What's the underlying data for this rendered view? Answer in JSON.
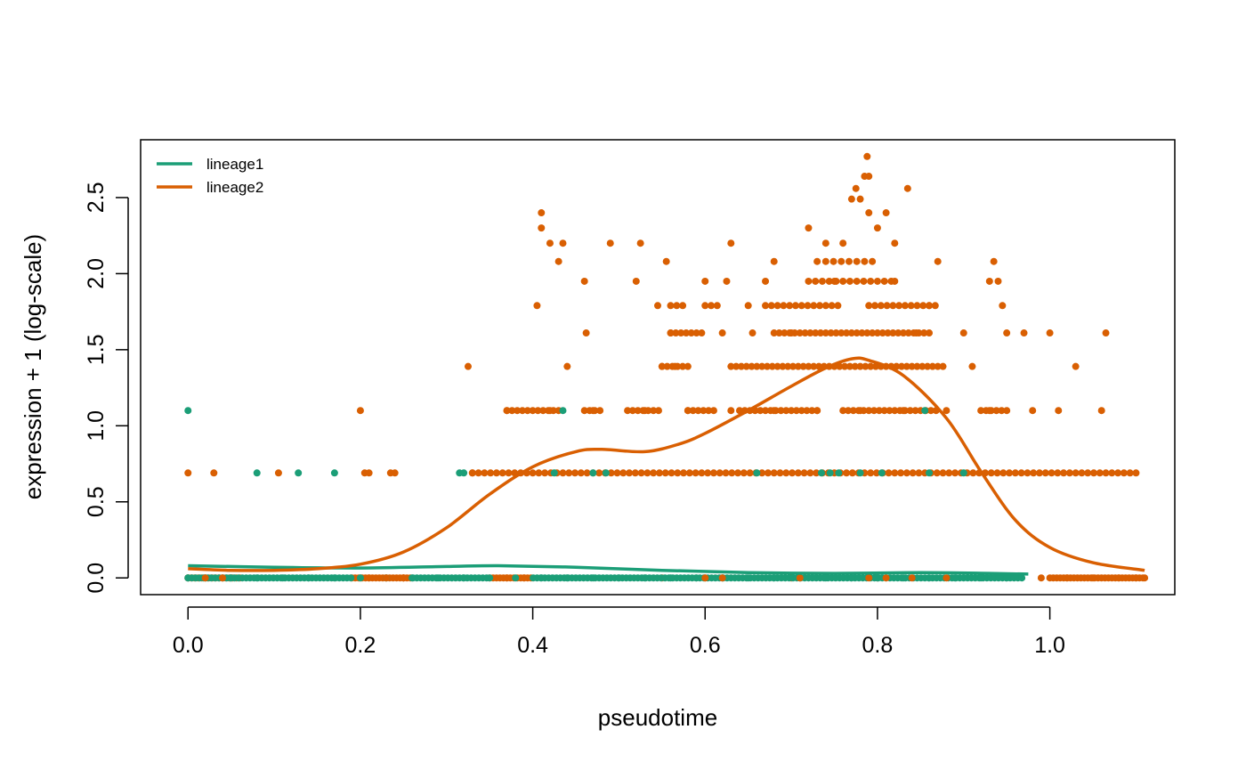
{
  "chart_data": {
    "type": "scatter",
    "title": "",
    "xlabel": "pseudotime",
    "ylabel": "expression + 1 (log-scale)",
    "xlim": [
      -0.055,
      1.145
    ],
    "ylim": [
      -0.11,
      2.88
    ],
    "xticks": [
      0.0,
      0.2,
      0.4,
      0.6,
      0.8,
      1.0
    ],
    "xtick_labels": [
      "0.0",
      "0.2",
      "0.4",
      "0.6",
      "0.8",
      "1.0"
    ],
    "yticks": [
      0.0,
      0.5,
      1.0,
      1.5,
      2.0,
      2.5
    ],
    "ytick_labels": [
      "0.0",
      "0.5",
      "1.0",
      "1.5",
      "2.0",
      "2.5"
    ],
    "grid": false,
    "legend_position": "top-left",
    "series": [
      {
        "name": "lineage1",
        "color": "#1B9E77",
        "points": [
          [
            0.0,
            1.1
          ],
          [
            0.08,
            0.69
          ],
          [
            0.128,
            0.69
          ],
          [
            0.17,
            0.69
          ],
          [
            0.315,
            0.69
          ],
          [
            0.32,
            0.69
          ],
          [
            0.435,
            1.1
          ],
          [
            0.425,
            0.69
          ],
          [
            0.47,
            0.69
          ],
          [
            0.485,
            0.69
          ],
          [
            0.66,
            0.69
          ],
          [
            0.735,
            0.69
          ],
          [
            0.745,
            0.69
          ],
          [
            0.755,
            0.69
          ],
          [
            0.78,
            0.69
          ],
          [
            0.805,
            0.69
          ],
          [
            0.855,
            1.1
          ],
          [
            0.86,
            0.69
          ],
          [
            0.9,
            0.69
          ],
          [
            0.0,
            0.0
          ],
          [
            0.02,
            0.0
          ],
          [
            0.05,
            0.0
          ],
          [
            0.08,
            0.0
          ],
          [
            0.11,
            0.0
          ],
          [
            0.14,
            0.0
          ],
          [
            0.17,
            0.0
          ],
          [
            0.2,
            0.0
          ],
          [
            0.23,
            0.0
          ],
          [
            0.26,
            0.0
          ],
          [
            0.29,
            0.0
          ],
          [
            0.32,
            0.0
          ],
          [
            0.35,
            0.0
          ],
          [
            0.38,
            0.0
          ],
          [
            0.41,
            0.0
          ],
          [
            0.44,
            0.0
          ],
          [
            0.47,
            0.0
          ],
          [
            0.5,
            0.0
          ],
          [
            0.53,
            0.0
          ],
          [
            0.56,
            0.0
          ],
          [
            0.59,
            0.0
          ],
          [
            0.62,
            0.0
          ],
          [
            0.65,
            0.0
          ],
          [
            0.68,
            0.0
          ],
          [
            0.71,
            0.0
          ],
          [
            0.74,
            0.0
          ],
          [
            0.77,
            0.0
          ],
          [
            0.8,
            0.0
          ],
          [
            0.83,
            0.0
          ],
          [
            0.86,
            0.0
          ],
          [
            0.89,
            0.0
          ],
          [
            0.92,
            0.0
          ],
          [
            0.95,
            0.0
          ]
        ],
        "curve": [
          [
            0.0,
            0.08
          ],
          [
            0.1,
            0.07
          ],
          [
            0.2,
            0.065
          ],
          [
            0.3,
            0.075
          ],
          [
            0.36,
            0.08
          ],
          [
            0.45,
            0.07
          ],
          [
            0.55,
            0.05
          ],
          [
            0.65,
            0.035
          ],
          [
            0.75,
            0.03
          ],
          [
            0.85,
            0.035
          ],
          [
            0.93,
            0.03
          ],
          [
            0.975,
            0.025
          ]
        ]
      },
      {
        "name": "lineage2",
        "color": "#D95F02",
        "points": [
          [
            0.0,
            0.69
          ],
          [
            0.03,
            0.69
          ],
          [
            0.105,
            0.69
          ],
          [
            0.2,
            1.1
          ],
          [
            0.205,
            0.69
          ],
          [
            0.21,
            0.69
          ],
          [
            0.235,
            0.69
          ],
          [
            0.24,
            0.69
          ],
          [
            0.325,
            1.39
          ],
          [
            0.33,
            0.69
          ],
          [
            0.405,
            1.79
          ],
          [
            0.41,
            2.4
          ],
          [
            0.41,
            2.3
          ],
          [
            0.42,
            2.2
          ],
          [
            0.43,
            2.08
          ],
          [
            0.435,
            2.2
          ],
          [
            0.44,
            1.39
          ],
          [
            0.46,
            1.95
          ],
          [
            0.462,
            1.61
          ],
          [
            0.49,
            2.2
          ],
          [
            0.52,
            1.95
          ],
          [
            0.525,
            2.2
          ],
          [
            0.555,
            2.08
          ],
          [
            0.545,
            1.79
          ],
          [
            0.56,
            1.61
          ],
          [
            0.565,
            1.39
          ],
          [
            0.6,
            1.95
          ],
          [
            0.63,
            2.2
          ],
          [
            0.625,
            1.95
          ],
          [
            0.65,
            1.79
          ],
          [
            0.655,
            1.61
          ],
          [
            0.67,
            1.95
          ],
          [
            0.68,
            2.08
          ],
          [
            0.7,
            1.61
          ],
          [
            0.72,
            2.3
          ],
          [
            0.73,
            2.08
          ],
          [
            0.74,
            2.2
          ],
          [
            0.75,
            1.95
          ],
          [
            0.76,
            2.2
          ],
          [
            0.77,
            2.49
          ],
          [
            0.775,
            2.56
          ],
          [
            0.78,
            2.49
          ],
          [
            0.785,
            2.64
          ],
          [
            0.79,
            2.64
          ],
          [
            0.788,
            2.77
          ],
          [
            0.79,
            2.4
          ],
          [
            0.8,
            2.3
          ],
          [
            0.81,
            2.4
          ],
          [
            0.82,
            2.2
          ],
          [
            0.835,
            2.56
          ],
          [
            0.82,
            1.95
          ],
          [
            0.845,
            1.61
          ],
          [
            0.87,
            2.08
          ],
          [
            0.86,
            1.79
          ],
          [
            0.9,
            1.61
          ],
          [
            0.93,
            1.95
          ],
          [
            0.935,
            2.08
          ],
          [
            0.94,
            1.95
          ],
          [
            0.945,
            1.79
          ],
          [
            0.95,
            1.61
          ],
          [
            0.97,
            1.61
          ],
          [
            1.0,
            1.61
          ],
          [
            1.03,
            1.39
          ],
          [
            1.065,
            1.61
          ],
          [
            1.06,
            1.1
          ],
          [
            0.91,
            1.39
          ],
          [
            0.55,
            1.39
          ],
          [
            0.62,
            1.61
          ],
          [
            0.37,
            1.1
          ],
          [
            0.42,
            1.1
          ],
          [
            0.47,
            1.1
          ],
          [
            0.53,
            1.1
          ],
          [
            0.58,
            1.1
          ],
          [
            0.63,
            1.1
          ],
          [
            0.68,
            1.1
          ],
          [
            0.73,
            1.1
          ],
          [
            0.78,
            1.1
          ],
          [
            0.83,
            1.1
          ],
          [
            0.88,
            1.1
          ],
          [
            0.93,
            1.1
          ],
          [
            0.98,
            1.1
          ],
          [
            1.01,
            1.1
          ],
          [
            0.0,
            0.0
          ],
          [
            0.05,
            0.0
          ],
          [
            0.2,
            0.0
          ],
          [
            0.25,
            0.0
          ],
          [
            0.55,
            0.0
          ],
          [
            0.6,
            0.0
          ],
          [
            0.7,
            0.0
          ],
          [
            0.8,
            0.0
          ],
          [
            0.99,
            0.0
          ],
          [
            1.02,
            0.0
          ],
          [
            1.05,
            0.0
          ],
          [
            1.08,
            0.0
          ],
          [
            1.1,
            0.0
          ],
          [
            1.11,
            0.0
          ]
        ],
        "bands": [
          {
            "y": 0.69,
            "x_ranges": [
              [
                0.33,
                1.1
              ]
            ],
            "step": 0.007
          },
          {
            "y": 1.1,
            "x_ranges": [
              [
                0.37,
                0.43
              ],
              [
                0.46,
                0.48
              ],
              [
                0.51,
                0.55
              ],
              [
                0.58,
                0.61
              ],
              [
                0.64,
                0.73
              ],
              [
                0.76,
                0.87
              ],
              [
                0.92,
                0.95
              ]
            ],
            "step": 0.006
          },
          {
            "y": 1.39,
            "x_ranges": [
              [
                0.55,
                0.58
              ],
              [
                0.63,
                0.88
              ]
            ],
            "step": 0.006
          },
          {
            "y": 1.61,
            "x_ranges": [
              [
                0.56,
                0.6
              ],
              [
                0.68,
                0.86
              ]
            ],
            "step": 0.006
          },
          {
            "y": 1.79,
            "x_ranges": [
              [
                0.56,
                0.58
              ],
              [
                0.6,
                0.62
              ],
              [
                0.67,
                0.76
              ],
              [
                0.79,
                0.87
              ]
            ],
            "step": 0.007
          },
          {
            "y": 1.95,
            "x_ranges": [
              [
                0.72,
                0.82
              ]
            ],
            "step": 0.008
          },
          {
            "y": 2.08,
            "x_ranges": [
              [
                0.74,
                0.8
              ]
            ],
            "step": 0.009
          },
          {
            "y": 0.0,
            "x_ranges": [
              [
                0.0,
                0.06
              ],
              [
                0.19,
                0.26
              ],
              [
                0.35,
                0.4
              ],
              [
                1.0,
                1.11
              ]
            ],
            "step": 0.004
          }
        ],
        "curve": [
          [
            0.0,
            0.06
          ],
          [
            0.05,
            0.05
          ],
          [
            0.1,
            0.05
          ],
          [
            0.15,
            0.06
          ],
          [
            0.2,
            0.09
          ],
          [
            0.25,
            0.17
          ],
          [
            0.3,
            0.33
          ],
          [
            0.35,
            0.55
          ],
          [
            0.4,
            0.73
          ],
          [
            0.45,
            0.83
          ],
          [
            0.48,
            0.845
          ],
          [
            0.53,
            0.83
          ],
          [
            0.57,
            0.88
          ],
          [
            0.6,
            0.95
          ],
          [
            0.65,
            1.1
          ],
          [
            0.7,
            1.26
          ],
          [
            0.74,
            1.38
          ],
          [
            0.77,
            1.44
          ],
          [
            0.79,
            1.43
          ],
          [
            0.83,
            1.33
          ],
          [
            0.88,
            1.05
          ],
          [
            0.92,
            0.7
          ],
          [
            0.96,
            0.38
          ],
          [
            1.0,
            0.2
          ],
          [
            1.05,
            0.1
          ],
          [
            1.11,
            0.05
          ]
        ]
      }
    ]
  }
}
